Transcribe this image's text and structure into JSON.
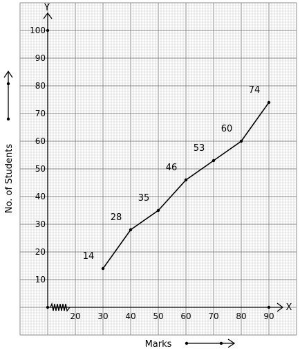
{
  "chart_data": {
    "type": "line",
    "xlabel": "Marks",
    "ylabel": "No. of Students",
    "x_axis_letter": "X",
    "y_axis_letter": "Y",
    "x": [
      30,
      40,
      50,
      60,
      70,
      80,
      90
    ],
    "values": [
      14,
      28,
      35,
      46,
      53,
      60,
      74
    ],
    "data_labels": [
      "14",
      "28",
      "35",
      "46",
      "53",
      "60",
      "74"
    ],
    "x_ticks": [
      "20",
      "30",
      "40",
      "50",
      "60",
      "70",
      "80",
      "90"
    ],
    "y_ticks": [
      "10",
      "20",
      "30",
      "40",
      "50",
      "60",
      "70",
      "80",
      "90",
      "100"
    ],
    "xlim": [
      10,
      94
    ],
    "ylim": [
      0,
      102
    ],
    "x_axis_break": true,
    "grid": true,
    "colors": {
      "line": "#000000",
      "grid_major": "#888888",
      "grid_minor": "#cfcfcf"
    }
  }
}
